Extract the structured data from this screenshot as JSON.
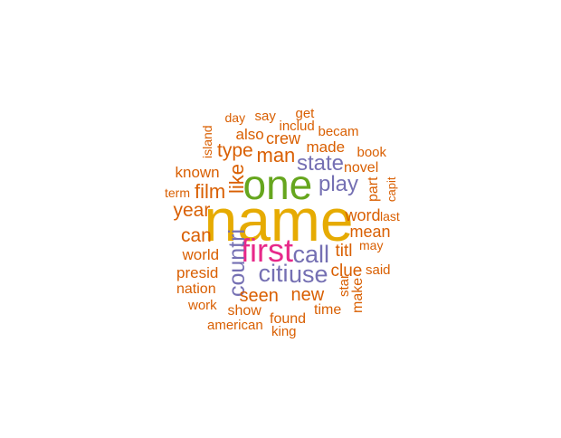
{
  "colors": {
    "orange": "#D95F02",
    "gold": "#E6AB02",
    "green": "#66A61E",
    "pink": "#E7298A",
    "purple": "#7570B3"
  },
  "words": [
    {
      "text": "name",
      "color": "gold"
    },
    {
      "text": "one",
      "color": "green"
    },
    {
      "text": "first",
      "color": "pink"
    },
    {
      "text": "call",
      "color": "purple"
    },
    {
      "text": "citi",
      "color": "purple"
    },
    {
      "text": "use",
      "color": "purple"
    },
    {
      "text": "countri",
      "color": "purple"
    },
    {
      "text": "state",
      "color": "purple"
    },
    {
      "text": "play",
      "color": "purple"
    },
    {
      "text": "man",
      "color": "orange"
    },
    {
      "text": "like",
      "color": "orange"
    },
    {
      "text": "film",
      "color": "orange"
    },
    {
      "text": "type",
      "color": "orange"
    },
    {
      "text": "year",
      "color": "orange"
    },
    {
      "text": "can",
      "color": "orange"
    },
    {
      "text": "seen",
      "color": "orange"
    },
    {
      "text": "new",
      "color": "orange"
    },
    {
      "text": "clue",
      "color": "orange"
    },
    {
      "text": "titl",
      "color": "orange"
    },
    {
      "text": "word",
      "color": "orange"
    },
    {
      "text": "mean",
      "color": "orange"
    },
    {
      "text": "crew",
      "color": "orange"
    },
    {
      "text": "also",
      "color": "orange"
    },
    {
      "text": "made",
      "color": "orange"
    },
    {
      "text": "known",
      "color": "orange"
    },
    {
      "text": "world",
      "color": "orange"
    },
    {
      "text": "presid",
      "color": "orange"
    },
    {
      "text": "nation",
      "color": "orange"
    },
    {
      "text": "novel",
      "color": "orange"
    },
    {
      "text": "book",
      "color": "orange"
    },
    {
      "text": "becam",
      "color": "orange"
    },
    {
      "text": "includ",
      "color": "orange"
    },
    {
      "text": "get",
      "color": "orange"
    },
    {
      "text": "say",
      "color": "orange"
    },
    {
      "text": "day",
      "color": "orange"
    },
    {
      "text": "island",
      "color": "orange"
    },
    {
      "text": "term",
      "color": "orange"
    },
    {
      "text": "part",
      "color": "orange"
    },
    {
      "text": "capit",
      "color": "orange"
    },
    {
      "text": "last",
      "color": "orange"
    },
    {
      "text": "may",
      "color": "orange"
    },
    {
      "text": "said",
      "color": "orange"
    },
    {
      "text": "star",
      "color": "orange"
    },
    {
      "text": "make",
      "color": "orange"
    },
    {
      "text": "time",
      "color": "orange"
    },
    {
      "text": "found",
      "color": "orange"
    },
    {
      "text": "king",
      "color": "orange"
    },
    {
      "text": "show",
      "color": "orange"
    },
    {
      "text": "american",
      "color": "orange"
    },
    {
      "text": "work",
      "color": "orange"
    }
  ]
}
